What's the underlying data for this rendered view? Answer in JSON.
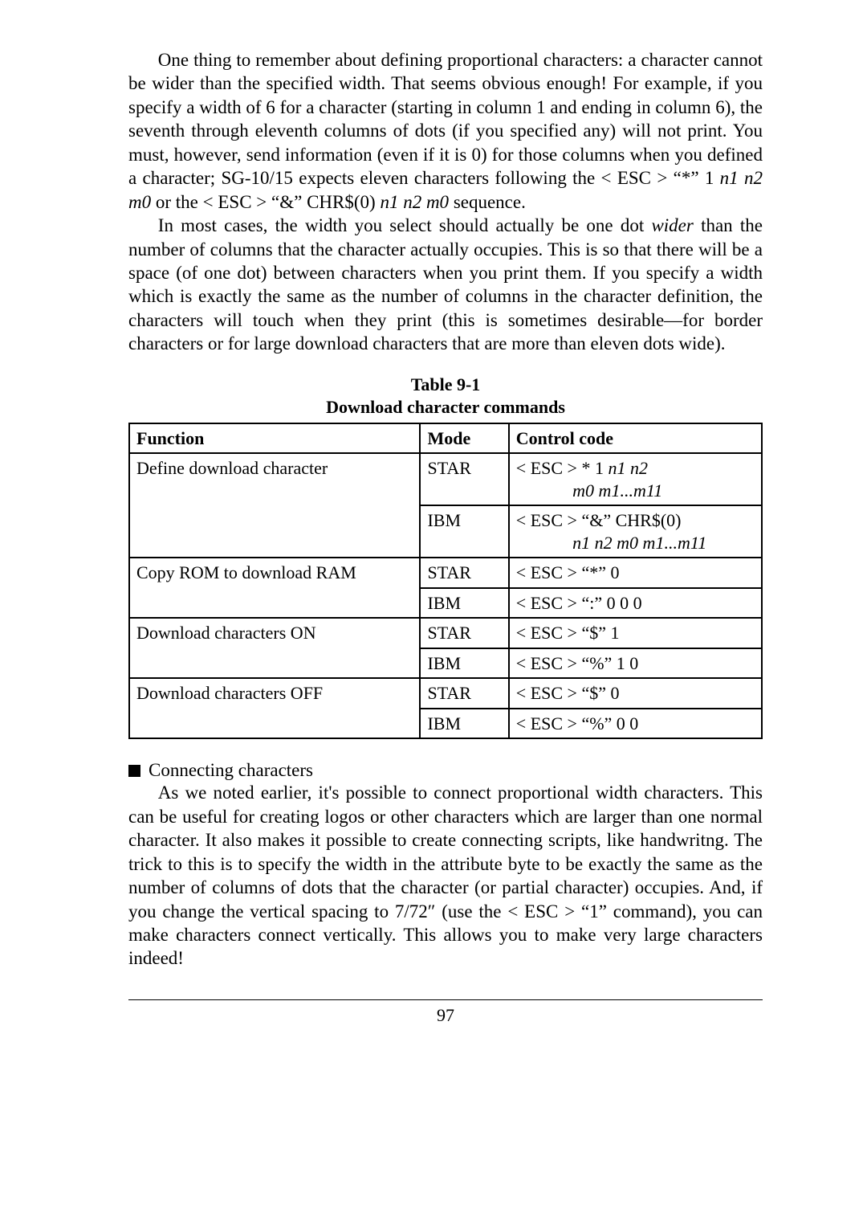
{
  "para1_a": "One thing to remember about defining proportional characters: a character cannot be wider than the specified width. That seems obvious enough! For example, if you specify a width of 6 for a character (starting in column 1 and ending in column 6), the seventh through eleventh columns of dots (if you specified any) will not print. You must, however, send information (even if it is 0) for those columns when you defined a character; SG-10/15 expects eleven characters following the < ESC > “*” 1 ",
  "para1_b": "n1 n2 m0",
  "para1_c": " or the < ESC > “&” CHR$(0) ",
  "para1_d": "n1 n2 m0",
  "para1_e": " sequence.",
  "para2_a": "In most cases, the width you select should actually be one dot ",
  "para2_b": "wider",
  "para2_c": " than the number of columns that the character actually occupies. This is so that there will be a space (of one dot) between characters when you print them. If you specify a width which is exactly the same as the number of columns in the character definition, the characters will touch when they print (this is sometimes desirable—for border characters or for large download characters that are more than eleven dots wide).",
  "table": {
    "caption_line1": "Table 9-1",
    "caption_line2": "Download character commands",
    "headers": {
      "c1": "Function",
      "c2": "Mode",
      "c3": "Control code"
    },
    "rows": [
      {
        "func": "Define download character",
        "mode": "STAR",
        "code_a": "< ESC > * 1 ",
        "code_b": "n1 n2",
        "code_c": "m0 m1...m11",
        "rowspan_func": 2,
        "sub_indent": true
      },
      {
        "mode": "IBM",
        "code_a": "< ESC > “&” CHR$(0)",
        "code_b": "n1 n2 m0 m1...m11",
        "sub_indent": true
      },
      {
        "func": "Copy ROM to download RAM",
        "mode": "STAR",
        "code_a": "< ESC > “*” 0",
        "rowspan_func": 2
      },
      {
        "mode": "IBM",
        "code_a": "< ESC > “:” 0 0 0"
      },
      {
        "func": "Download characters ON",
        "mode": "STAR",
        "code_a": "< ESC > “$” 1",
        "rowspan_func": 2
      },
      {
        "mode": "IBM",
        "code_a": "< ESC > “%” 1 0"
      },
      {
        "func": "Download characters OFF",
        "mode": "STAR",
        "code_a": "< ESC > “$” 0",
        "rowspan_func": 2
      },
      {
        "mode": "IBM",
        "code_a": "< ESC > “%” 0 0"
      }
    ]
  },
  "sect_head": "Connecting characters",
  "para3": "As we noted earlier, it's possible to connect proportional width characters. This can be useful for creating logos or other characters which are larger than one normal character. It also makes it possible to create connecting scripts, like handwritng. The trick to this is to specify the width in the attribute byte to be exactly the same as the number of columns of dots that the character (or partial character) occupies. And, if you change the vertical spacing to 7/72″ (use the < ESC > “1” command), you can make characters connect vertically. This allows you to make very large characters indeed!",
  "page_number": "97"
}
